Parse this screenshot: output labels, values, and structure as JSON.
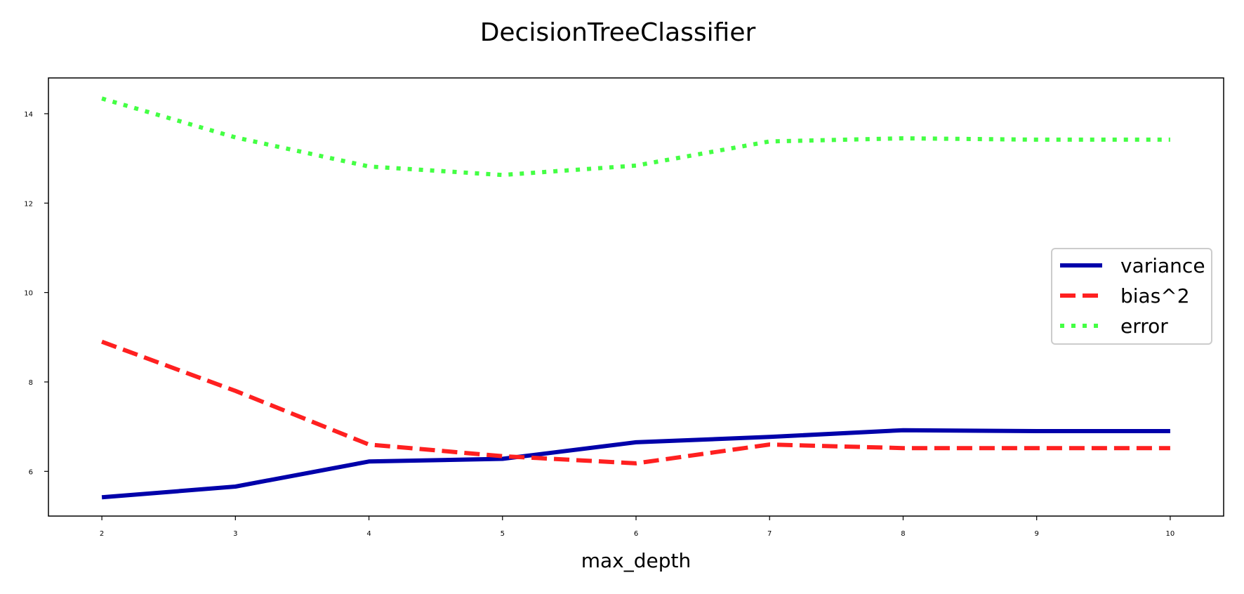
{
  "chart_data": {
    "type": "line",
    "title": "DecisionTreeClassifier",
    "xlabel": "max_depth",
    "ylabel": "",
    "x": [
      2,
      3,
      4,
      5,
      6,
      7,
      8,
      9,
      10
    ],
    "xlim": [
      1.6,
      10.4
    ],
    "ylim": [
      5.0,
      14.8
    ],
    "xticks": [
      2,
      3,
      4,
      5,
      6,
      7,
      8,
      9,
      10
    ],
    "yticks": [
      6,
      8,
      10,
      12,
      14
    ],
    "grid": false,
    "legend_position": "center-right",
    "series": [
      {
        "name": "variance",
        "values": [
          5.42,
          5.66,
          6.22,
          6.28,
          6.65,
          6.77,
          6.92,
          6.9,
          6.9
        ],
        "color": "#0000aa",
        "style": "solid"
      },
      {
        "name": "bias^2",
        "values": [
          8.9,
          7.8,
          6.6,
          6.34,
          6.18,
          6.6,
          6.52,
          6.52,
          6.52
        ],
        "color": "#ff2020",
        "style": "dashed"
      },
      {
        "name": "error",
        "values": [
          14.34,
          13.47,
          12.82,
          12.63,
          12.84,
          13.38,
          13.45,
          13.42,
          13.42
        ],
        "color": "#44ff44",
        "style": "dotted"
      }
    ]
  }
}
